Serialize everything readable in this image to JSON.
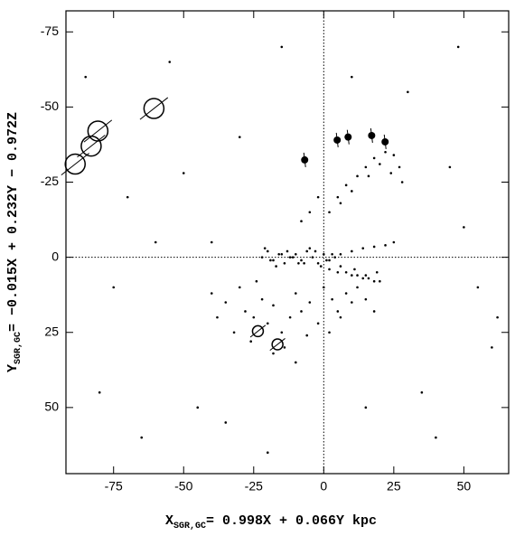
{
  "chart_data": {
    "type": "scatter",
    "x_label": {
      "symbol": "X",
      "subscript": "SGR,GC",
      "text": "= 0.998X + 0.066Y kpc"
    },
    "y_label": {
      "symbol": "Y",
      "subscript": "SGR,GC",
      "text": "= −0.015X + 0.232Y − 0.972Z"
    },
    "xlim": [
      -92,
      66
    ],
    "ylim": [
      72,
      -82
    ],
    "xticks": [
      -75,
      -50,
      -25,
      0,
      25,
      50
    ],
    "yticks": [
      -75,
      -50,
      -25,
      0,
      25,
      50
    ],
    "zero_lines": true,
    "color": "#000000",
    "series": [
      {
        "marker": "dot",
        "size": 1.3,
        "x": [
          -22,
          -20,
          -18,
          -16,
          -14,
          -12,
          -10,
          -8,
          -6,
          -4,
          -2,
          0,
          2,
          4,
          -21,
          -17,
          -13,
          -9,
          -5,
          -1,
          3,
          -19,
          -15,
          -11,
          -7,
          -3,
          1,
          6,
          10,
          14,
          18,
          22,
          25,
          2,
          5,
          8,
          10,
          12,
          14,
          16,
          18,
          20,
          6,
          11,
          15,
          19,
          2,
          5,
          8,
          12,
          15,
          18,
          22,
          25,
          27,
          28,
          24,
          20,
          16,
          10,
          6,
          -5,
          -2,
          -8,
          -40,
          -35,
          -30,
          -28,
          -25,
          -22,
          -20,
          -18,
          -15,
          -12,
          -10,
          -8,
          -5,
          -2,
          0,
          3,
          5,
          8,
          10,
          12,
          -32,
          -26,
          -14,
          -6,
          2,
          6,
          -38,
          -18,
          -24,
          -10,
          15,
          18,
          -85,
          -70,
          -55,
          -40,
          -30,
          -15,
          10,
          30,
          45,
          55,
          60,
          -80,
          -65,
          -45,
          -20,
          40,
          50,
          -75,
          -60,
          35,
          62,
          -50,
          -35,
          15,
          48
        ],
        "y": [
          0,
          -2,
          1,
          -1,
          2,
          0,
          -1,
          1,
          -2,
          0,
          2,
          -1,
          1,
          0,
          -3,
          3,
          -2,
          2,
          -3,
          3,
          -1,
          1,
          -1,
          0,
          2,
          -2,
          1,
          -1,
          -2,
          -3,
          -3.5,
          -4,
          -5,
          4,
          5,
          5,
          6,
          6,
          7,
          7,
          8,
          8,
          3,
          4,
          6,
          5,
          -15,
          -20,
          -24,
          -27,
          -30,
          -33,
          -35,
          -34,
          -30,
          -25,
          -28,
          -31,
          -27,
          -22,
          -18,
          -15,
          -20,
          -12,
          12,
          15,
          10,
          18,
          20,
          14,
          22,
          16,
          25,
          20,
          12,
          18,
          15,
          22,
          10,
          14,
          18,
          12,
          15,
          10,
          25,
          28,
          30,
          26,
          25,
          20,
          20,
          32,
          8,
          35,
          14,
          18,
          -60,
          -20,
          -65,
          -5,
          -40,
          -70,
          -60,
          -55,
          -30,
          10,
          30,
          45,
          60,
          50,
          65,
          60,
          -10,
          10,
          -5,
          45,
          20,
          -28,
          55,
          50,
          -70
        ]
      },
      {
        "marker": "open-circle",
        "size": 11,
        "x": [
          -88.7,
          -83,
          -80.6,
          -60.6
        ],
        "y": [
          -31,
          -37,
          -42,
          -49.5
        ]
      },
      {
        "marker": "open-circle",
        "size": 6,
        "x": [
          -23.5,
          -16.5
        ],
        "y": [
          24.6,
          29
        ]
      },
      {
        "marker": "filled-circle",
        "size": 4,
        "x": [
          -6.8,
          4.8,
          8.7,
          17.1,
          21.9
        ],
        "y": [
          -32.4,
          -39,
          -40,
          -40.5,
          -38.4
        ]
      }
    ]
  }
}
